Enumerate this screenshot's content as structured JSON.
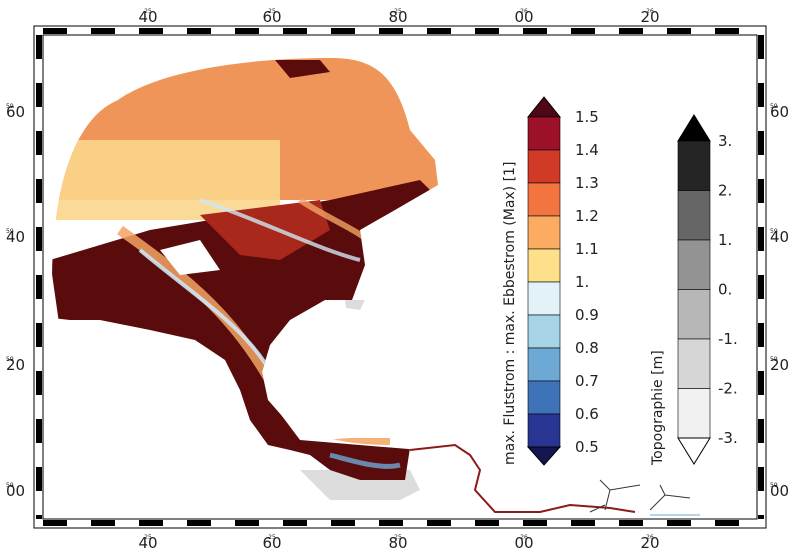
{
  "map": {
    "frame_ticks": {
      "top": [
        {
          "deg": "25",
          "min": "40"
        },
        {
          "deg": "25",
          "min": "60"
        },
        {
          "deg": "25",
          "min": "80"
        },
        {
          "deg": "26",
          "min": "00"
        },
        {
          "deg": "26",
          "min": "20"
        }
      ],
      "bottom": [
        {
          "deg": "25",
          "min": "40"
        },
        {
          "deg": "25",
          "min": "60"
        },
        {
          "deg": "25",
          "min": "80"
        },
        {
          "deg": "26",
          "min": "00"
        },
        {
          "deg": "26",
          "min": "20"
        }
      ],
      "left": [
        {
          "deg": "59",
          "min": "60"
        },
        {
          "deg": "59",
          "min": "40"
        },
        {
          "deg": "59",
          "min": "20"
        },
        {
          "deg": "59",
          "min": "00"
        }
      ],
      "right": [
        {
          "deg": "59",
          "min": "60"
        },
        {
          "deg": "59",
          "min": "40"
        },
        {
          "deg": "59",
          "min": "20"
        },
        {
          "deg": "59",
          "min": "00"
        }
      ]
    },
    "ratio_colorbar": {
      "title": "max. Flutstrom : max. Ebbestrom (Max) [1]",
      "labels": [
        "1.5",
        "1.4",
        "1.3",
        "1.2",
        "1.1",
        "1.",
        "0.9",
        "0.8",
        "0.7",
        "0.6",
        "0.5"
      ],
      "colors": [
        "#9c1127",
        "#d13a26",
        "#f2753f",
        "#fcab63",
        "#fee08b",
        "#e3f2f7",
        "#a6d3e6",
        "#6ea8d4",
        "#3e73b8",
        "#283593"
      ],
      "over_color": "#4d0716",
      "under_color": "#12184f"
    },
    "topo_colorbar": {
      "title": "Topographie [m]",
      "labels": [
        "3.",
        "2.",
        "1.",
        "0.",
        "-1.",
        "-2.",
        "-3."
      ],
      "colors": [
        "#252525",
        "#666666",
        "#939393",
        "#b7b7b7",
        "#d6d6d6",
        "#f1f1f1"
      ],
      "over_color": "#000000",
      "under_color": "#ffffff"
    },
    "palette": {
      "dark_red": "#5a0b0b",
      "red": "#a8281c",
      "orange": "#e7713c",
      "light_orange": "#f3a363",
      "yellow": "#fbd68c",
      "light_blue": "#cfe6f3",
      "blue": "#6ea8d4",
      "land_gray": "#d8d8d8"
    }
  }
}
